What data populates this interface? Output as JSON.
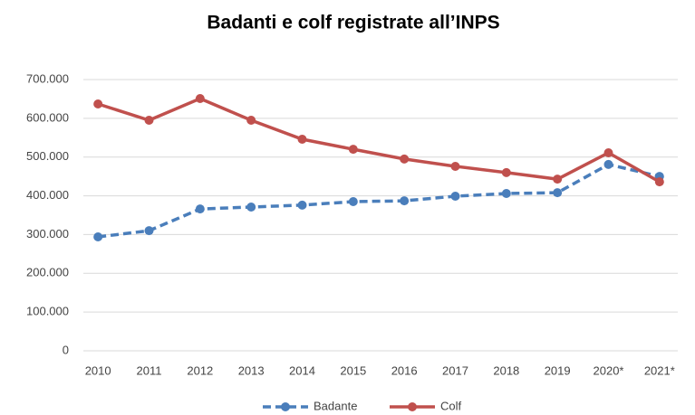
{
  "chart_data": {
    "type": "line",
    "title": "Badanti e colf registrate all’INPS",
    "categories": [
      "2010",
      "2011",
      "2012",
      "2013",
      "2014",
      "2015",
      "2016",
      "2017",
      "2018",
      "2019",
      "2020*",
      "2021*"
    ],
    "series": [
      {
        "name": "Badante",
        "color": "#4a7ebb",
        "dashed": true,
        "values": [
          294000,
          310000,
          366000,
          371000,
          376000,
          385000,
          387000,
          399000,
          406000,
          408000,
          481000,
          450000
        ]
      },
      {
        "name": "Colf",
        "color": "#c0504d",
        "dashed": false,
        "values": [
          637000,
          595000,
          651000,
          595000,
          546000,
          520000,
          495000,
          476000,
          460000,
          443000,
          511000,
          436000
        ]
      }
    ],
    "ylim": [
      0,
      700000
    ],
    "yticks": [
      0,
      {
        "value": 100000,
        "label": "100.000"
      },
      {
        "value": 200000,
        "label": "200.000"
      },
      {
        "value": 300000,
        "label": "300.000"
      },
      {
        "value": 400000,
        "label": "400.000"
      },
      {
        "value": 500000,
        "label": "500.000"
      },
      {
        "value": 600000,
        "label": "600.000"
      },
      {
        "value": 700000,
        "label": "700.000"
      }
    ],
    "grid": true,
    "legend": "bottom"
  }
}
